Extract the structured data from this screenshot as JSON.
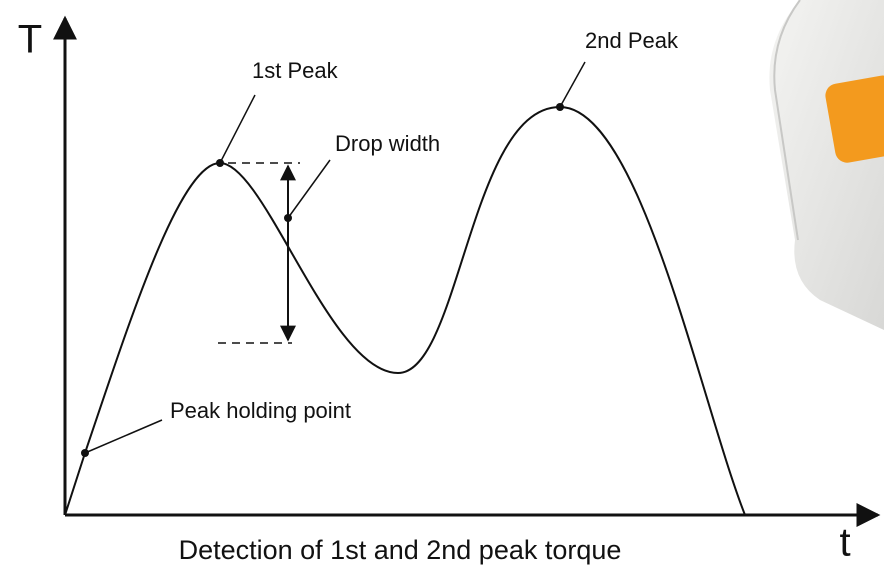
{
  "axes": {
    "y_label": "T",
    "x_label": "t"
  },
  "annotations": {
    "first_peak": "1st Peak",
    "second_peak": "2nd Peak",
    "drop_width": "Drop width",
    "peak_holding_point": "Peak holding point"
  },
  "caption": "Detection of 1st and 2nd peak torque"
}
